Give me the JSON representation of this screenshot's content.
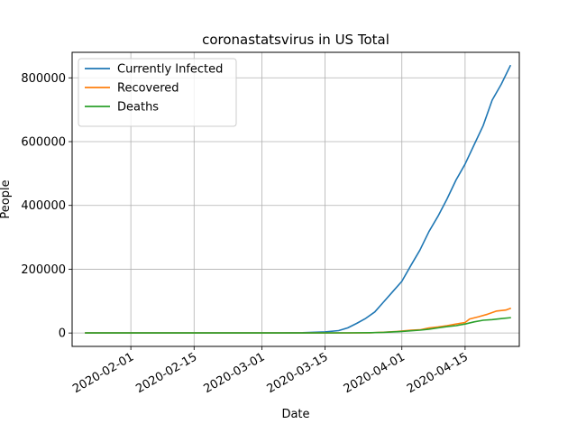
{
  "chart_data": {
    "type": "line",
    "title": "coronastatsvirus in US Total",
    "xlabel": "Date",
    "ylabel": "People",
    "x_type": "date",
    "xlim": [
      "2020-01-19",
      "2020-04-27"
    ],
    "ylim": [
      -42000,
      880000
    ],
    "x_ticks": [
      "2020-02-01",
      "2020-02-15",
      "2020-03-01",
      "2020-03-15",
      "2020-04-01",
      "2020-04-15"
    ],
    "y_ticks": [
      0,
      200000,
      400000,
      600000,
      800000
    ],
    "y_tick_labels": [
      "0",
      "200000",
      "400000",
      "600000",
      "800000"
    ],
    "grid": true,
    "legend_position": "upper left",
    "series": [
      {
        "name": "Currently Infected",
        "color": "#1f77b4",
        "points": [
          [
            "2020-01-22",
            1
          ],
          [
            "2020-02-01",
            8
          ],
          [
            "2020-02-15",
            15
          ],
          [
            "2020-03-01",
            80
          ],
          [
            "2020-03-05",
            200
          ],
          [
            "2020-03-10",
            900
          ],
          [
            "2020-03-15",
            3400
          ],
          [
            "2020-03-18",
            7500
          ],
          [
            "2020-03-20",
            16000
          ],
          [
            "2020-03-22",
            30000
          ],
          [
            "2020-03-24",
            46000
          ],
          [
            "2020-03-26",
            66000
          ],
          [
            "2020-03-28",
            98000
          ],
          [
            "2020-03-30",
            130000
          ],
          [
            "2020-04-01",
            162000
          ],
          [
            "2020-04-03",
            212000
          ],
          [
            "2020-04-05",
            260000
          ],
          [
            "2020-04-07",
            318000
          ],
          [
            "2020-04-09",
            366000
          ],
          [
            "2020-04-11",
            420000
          ],
          [
            "2020-04-13",
            480000
          ],
          [
            "2020-04-15",
            530000
          ],
          [
            "2020-04-17",
            590000
          ],
          [
            "2020-04-19",
            650000
          ],
          [
            "2020-04-21",
            730000
          ],
          [
            "2020-04-23",
            780000
          ],
          [
            "2020-04-25",
            838000
          ]
        ]
      },
      {
        "name": "Recovered",
        "color": "#ff7f0e",
        "points": [
          [
            "2020-01-22",
            0
          ],
          [
            "2020-03-10",
            10
          ],
          [
            "2020-03-20",
            150
          ],
          [
            "2020-03-25",
            800
          ],
          [
            "2020-03-28",
            2500
          ],
          [
            "2020-03-31",
            5000
          ],
          [
            "2020-04-03",
            9000
          ],
          [
            "2020-04-05",
            10000
          ],
          [
            "2020-04-07",
            16000
          ],
          [
            "2020-04-09",
            19000
          ],
          [
            "2020-04-11",
            23000
          ],
          [
            "2020-04-13",
            28000
          ],
          [
            "2020-04-15",
            33000
          ],
          [
            "2020-04-16",
            44000
          ],
          [
            "2020-04-18",
            51000
          ],
          [
            "2020-04-20",
            59000
          ],
          [
            "2020-04-22",
            69000
          ],
          [
            "2020-04-24",
            72000
          ],
          [
            "2020-04-25",
            77000
          ]
        ]
      },
      {
        "name": "Deaths",
        "color": "#2ca02c",
        "points": [
          [
            "2020-01-22",
            0
          ],
          [
            "2020-03-10",
            30
          ],
          [
            "2020-03-20",
            300
          ],
          [
            "2020-03-25",
            1000
          ],
          [
            "2020-03-28",
            2000
          ],
          [
            "2020-04-01",
            5000
          ],
          [
            "2020-04-03",
            7000
          ],
          [
            "2020-04-05",
            9000
          ],
          [
            "2020-04-07",
            12000
          ],
          [
            "2020-04-09",
            16000
          ],
          [
            "2020-04-11",
            20000
          ],
          [
            "2020-04-13",
            23000
          ],
          [
            "2020-04-15",
            28000
          ],
          [
            "2020-04-17",
            35000
          ],
          [
            "2020-04-19",
            40000
          ],
          [
            "2020-04-21",
            42000
          ],
          [
            "2020-04-23",
            45000
          ],
          [
            "2020-04-25",
            48000
          ]
        ]
      }
    ]
  }
}
